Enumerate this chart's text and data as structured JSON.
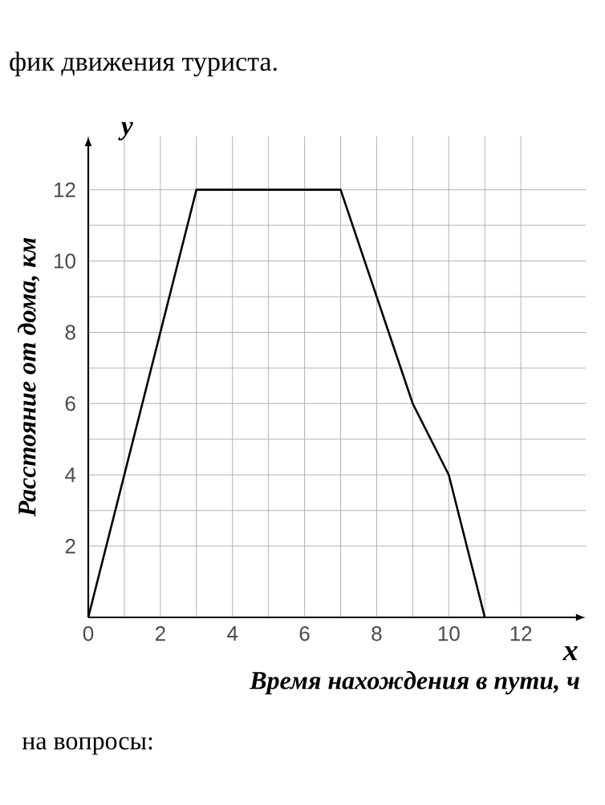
{
  "chart_data": {
    "type": "line",
    "title": "фик движения туриста.",
    "xlabel": "Время нахождения в пути, ч",
    "ylabel": "Расстояние от дома, км",
    "annotations": [
      "y",
      "x",
      "на вопросы:"
    ],
    "x": [
      0,
      3,
      7,
      9,
      10,
      11
    ],
    "series": [
      {
        "color": "#000000",
        "values": [
          0,
          12,
          12,
          6,
          4,
          0
        ]
      }
    ],
    "xlim": [
      0,
      13.8
    ],
    "ylim": [
      0,
      13.5
    ],
    "xticks": [
      0,
      2,
      4,
      6,
      8,
      10,
      12
    ],
    "yticks": [
      2,
      4,
      6,
      8,
      10,
      12
    ],
    "grid": true,
    "marker": "none",
    "line_style": "solid"
  }
}
